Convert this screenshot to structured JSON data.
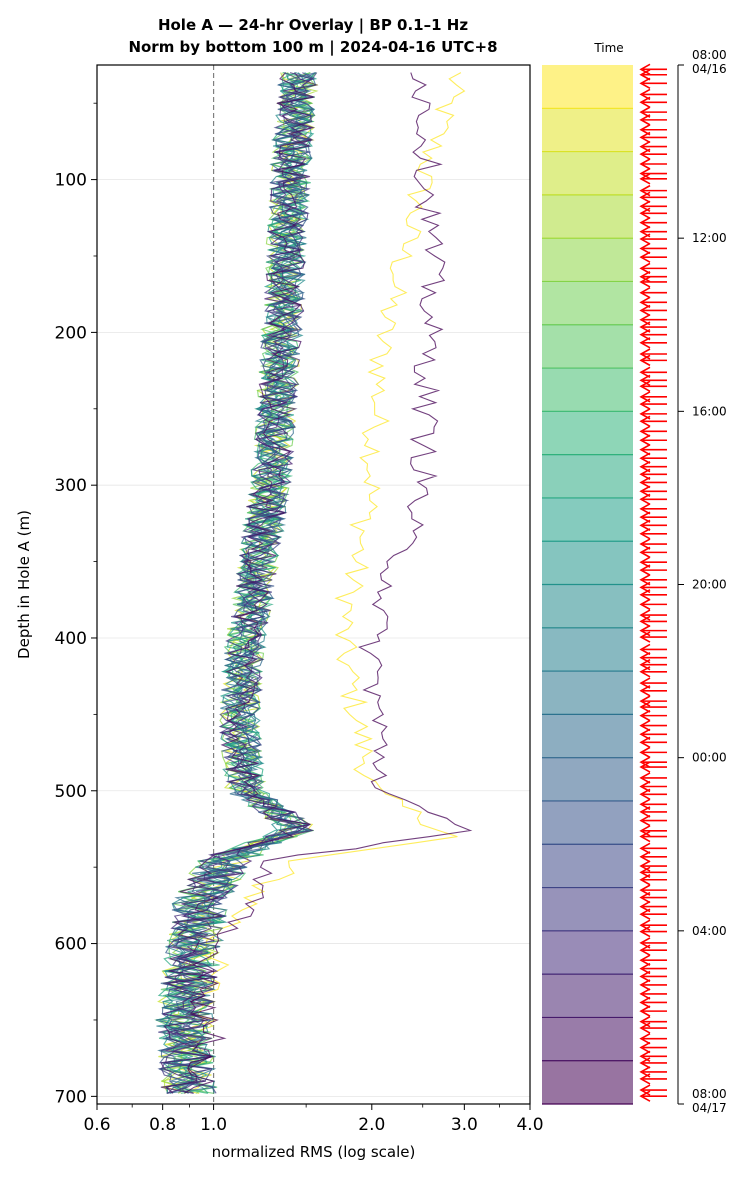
{
  "figure": {
    "title_line1": "Hole A — 24-hr Overlay  |  BP 0.1–1 Hz",
    "title_line2": "Norm by bottom 100 m  |  2024-04-16 UTC+8"
  },
  "chart_data": {
    "type": "line",
    "xscale": "log",
    "xlabel": "normalized RMS  (log scale)",
    "ylabel": "Depth in Hole A (m)",
    "xlim": [
      0.6,
      4.0
    ],
    "ylim": [
      705,
      25
    ],
    "y_inverted": true,
    "xticks": [
      0.6,
      0.8,
      1.0,
      2.0,
      3.0,
      4.0
    ],
    "xtick_labels": [
      "0.6",
      "0.8",
      "1.0",
      "2.0",
      "3.0",
      "4.0"
    ],
    "yticks": [
      100,
      200,
      300,
      400,
      500,
      600,
      700
    ],
    "ytick_labels": [
      "100",
      "200",
      "300",
      "400",
      "500",
      "600",
      "700"
    ],
    "reference_line_x": 1.0,
    "grid": "horizontal, light",
    "n_traces": 24,
    "depth_range": [
      30,
      700
    ],
    "trace_times": [
      "08:00",
      "09:00",
      "10:00",
      "11:00",
      "12:00",
      "13:00",
      "14:00",
      "15:00",
      "16:00",
      "17:00",
      "18:00",
      "19:00",
      "20:00",
      "21:00",
      "22:00",
      "23:00",
      "00:00",
      "01:00",
      "02:00",
      "03:00",
      "04:00",
      "05:00",
      "06:00",
      "07:00"
    ],
    "base_profile": [
      {
        "depth": 30,
        "rms": 1.45
      },
      {
        "depth": 100,
        "rms": 1.4
      },
      {
        "depth": 200,
        "rms": 1.35
      },
      {
        "depth": 300,
        "rms": 1.28
      },
      {
        "depth": 350,
        "rms": 1.22
      },
      {
        "depth": 400,
        "rms": 1.15
      },
      {
        "depth": 450,
        "rms": 1.12
      },
      {
        "depth": 500,
        "rms": 1.15
      },
      {
        "depth": 525,
        "rms": 1.45
      },
      {
        "depth": 545,
        "rms": 1.05
      },
      {
        "depth": 570,
        "rms": 0.95
      },
      {
        "depth": 600,
        "rms": 0.92
      },
      {
        "depth": 650,
        "rms": 0.88
      },
      {
        "depth": 700,
        "rms": 0.9
      }
    ],
    "highlighted_traces": [
      {
        "time": "08:00",
        "points": [
          {
            "depth": 30,
            "rms": 2.9
          },
          {
            "depth": 100,
            "rms": 2.5
          },
          {
            "depth": 200,
            "rms": 2.1
          },
          {
            "depth": 300,
            "rms": 2.0
          },
          {
            "depth": 400,
            "rms": 1.75
          },
          {
            "depth": 500,
            "rms": 2.0
          },
          {
            "depth": 530,
            "rms": 2.9
          },
          {
            "depth": 545,
            "rms": 1.4
          },
          {
            "depth": 600,
            "rms": 1.0
          },
          {
            "depth": 700,
            "rms": 0.9
          }
        ]
      },
      {
        "time": "07:00",
        "points": [
          {
            "depth": 30,
            "rms": 2.5
          },
          {
            "depth": 150,
            "rms": 2.6
          },
          {
            "depth": 300,
            "rms": 2.5
          },
          {
            "depth": 400,
            "rms": 2.0
          },
          {
            "depth": 500,
            "rms": 2.1
          },
          {
            "depth": 528,
            "rms": 3.0
          },
          {
            "depth": 545,
            "rms": 1.3
          },
          {
            "depth": 600,
            "rms": 1.0
          },
          {
            "depth": 700,
            "rms": 0.95
          }
        ]
      }
    ],
    "colorbar": {
      "label": "Time",
      "colormap": "viridis (reversed: yellow at top)",
      "n_bands": 24,
      "tick_labels": [
        "08:00\n04/16",
        "12:00",
        "16:00",
        "20:00",
        "00:00",
        "04:00",
        "08:00\n04/17"
      ],
      "tick_positions_hours": [
        0,
        4,
        8,
        12,
        16,
        20,
        24
      ],
      "event_markers": "red arrows, approx. every 12 minutes over 24 h",
      "event_marker_count": 120
    }
  },
  "colors": {
    "reference_line": "#808080",
    "event_marker": "#ff0000",
    "viridis_stops": [
      "#440154",
      "#482878",
      "#3e4989",
      "#31688e",
      "#26828e",
      "#1f9e89",
      "#35b779",
      "#6ece58",
      "#b5de2b",
      "#fde725"
    ]
  }
}
